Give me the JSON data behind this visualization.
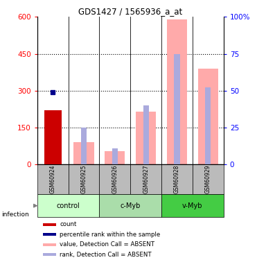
{
  "title": "GDS1427 / 1565936_a_at",
  "samples": [
    "GSM60924",
    "GSM60925",
    "GSM60926",
    "GSM60927",
    "GSM60928",
    "GSM60929"
  ],
  "groups": [
    {
      "name": "control",
      "samples": [
        0,
        1
      ],
      "color": "#ccffcc"
    },
    {
      "name": "c-Myb",
      "samples": [
        2,
        3
      ],
      "color": "#aaddaa"
    },
    {
      "name": "v-Myb",
      "samples": [
        4,
        5
      ],
      "color": "#44cc44"
    }
  ],
  "count_values": [
    220,
    null,
    null,
    null,
    null,
    null
  ],
  "rank_values": [
    295,
    null,
    null,
    null,
    null,
    null
  ],
  "pink_bar_values": [
    null,
    90,
    55,
    215,
    590,
    390
  ],
  "blue_bar_values": [
    null,
    150,
    65,
    240,
    450,
    315
  ],
  "ylim_left": [
    0,
    600
  ],
  "ylim_right": [
    0,
    100
  ],
  "yticks_left": [
    0,
    150,
    300,
    450,
    600
  ],
  "yticks_right": [
    0,
    25,
    50,
    75,
    100
  ],
  "ytick_labels_left": [
    "0",
    "150",
    "300",
    "450",
    "600"
  ],
  "ytick_labels_right": [
    "0",
    "25",
    "50",
    "75",
    "100%"
  ],
  "infection_label": "infection",
  "legend_items": [
    {
      "color": "#cc0000",
      "label": "count"
    },
    {
      "color": "#00008b",
      "label": "percentile rank within the sample"
    },
    {
      "color": "#ffaaaa",
      "label": "value, Detection Call = ABSENT"
    },
    {
      "color": "#aaaadd",
      "label": "rank, Detection Call = ABSENT"
    }
  ],
  "count_color": "#cc0000",
  "rank_dot_color": "#00008b",
  "pink_color": "#ffaaaa",
  "blue_bar_color": "#aaaadd",
  "sample_row_color": "#bbbbbb"
}
